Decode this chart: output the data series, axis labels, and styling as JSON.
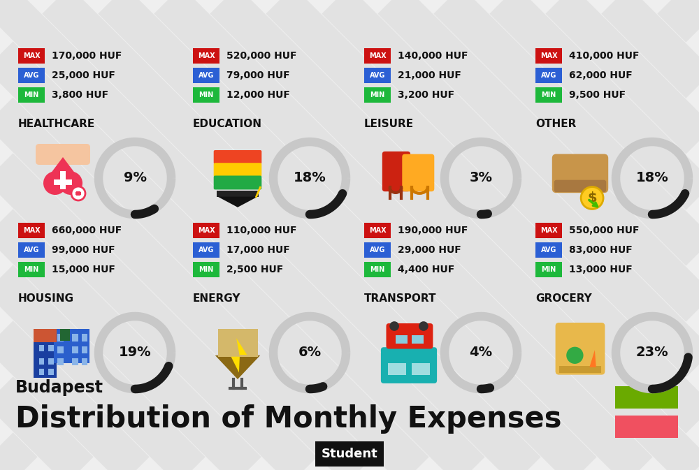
{
  "title": "Distribution of Monthly Expenses",
  "subtitle": "Budapest",
  "header_label": "Student",
  "background_color": "#efefef",
  "flag_colors": [
    "#f05060",
    "#6aaa00"
  ],
  "categories": [
    {
      "name": "HOUSING",
      "percent": 19,
      "min": "15,000 HUF",
      "avg": "99,000 HUF",
      "max": "660,000 HUF",
      "row": 0,
      "col": 0
    },
    {
      "name": "ENERGY",
      "percent": 6,
      "min": "2,500 HUF",
      "avg": "17,000 HUF",
      "max": "110,000 HUF",
      "row": 0,
      "col": 1
    },
    {
      "name": "TRANSPORT",
      "percent": 4,
      "min": "4,400 HUF",
      "avg": "29,000 HUF",
      "max": "190,000 HUF",
      "row": 0,
      "col": 2
    },
    {
      "name": "GROCERY",
      "percent": 23,
      "min": "13,000 HUF",
      "avg": "83,000 HUF",
      "max": "550,000 HUF",
      "row": 0,
      "col": 3
    },
    {
      "name": "HEALTHCARE",
      "percent": 9,
      "min": "3,800 HUF",
      "avg": "25,000 HUF",
      "max": "170,000 HUF",
      "row": 1,
      "col": 0
    },
    {
      "name": "EDUCATION",
      "percent": 18,
      "min": "12,000 HUF",
      "avg": "79,000 HUF",
      "max": "520,000 HUF",
      "row": 1,
      "col": 1
    },
    {
      "name": "LEISURE",
      "percent": 3,
      "min": "3,200 HUF",
      "avg": "21,000 HUF",
      "max": "140,000 HUF",
      "row": 1,
      "col": 2
    },
    {
      "name": "OTHER",
      "percent": 18,
      "min": "9,500 HUF",
      "avg": "62,000 HUF",
      "max": "410,000 HUF",
      "row": 1,
      "col": 3
    }
  ],
  "min_color": "#1db83b",
  "avg_color": "#2b5fd4",
  "max_color": "#cc1111",
  "donut_bg_color": "#c8c8c8",
  "donut_active_color": "#1a1a1a",
  "stripe_color": "#e2e2e2"
}
